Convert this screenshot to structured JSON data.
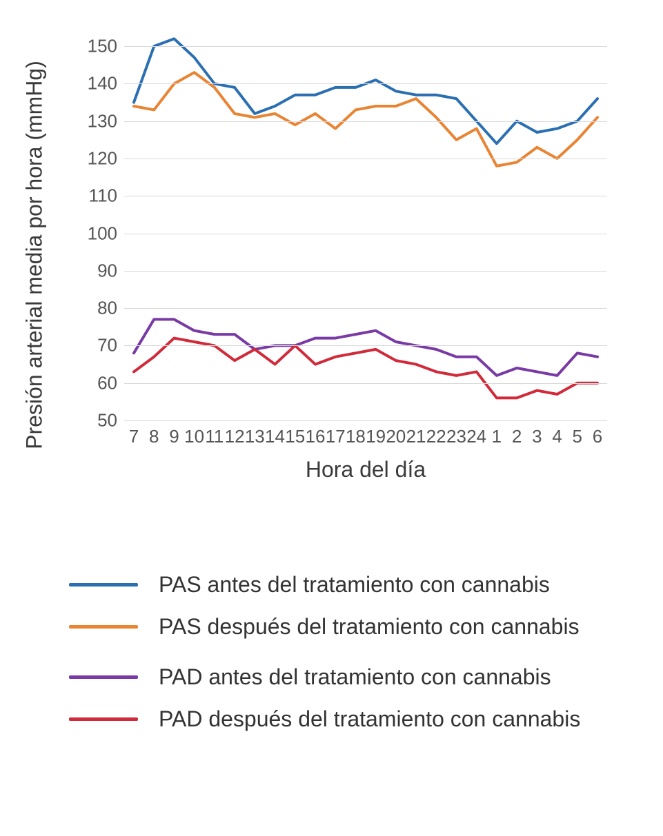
{
  "chart": {
    "type": "line",
    "background_color": "#ffffff",
    "grid_color": "#d9d9d9",
    "axis_text_color": "#555555",
    "label_text_color": "#3a3a3a",
    "ylabel": "Presión arterial media por hora (mmHg)",
    "xlabel": "Hora del día",
    "ylabel_fontsize": 32,
    "xlabel_fontsize": 32,
    "tick_fontsize": 26,
    "ylim": [
      50,
      155
    ],
    "yticks": [
      50,
      60,
      70,
      80,
      90,
      100,
      110,
      120,
      130,
      140,
      150
    ],
    "x_categories": [
      "7",
      "8",
      "9",
      "10",
      "11",
      "12",
      "13",
      "14",
      "15",
      "16",
      "17",
      "18",
      "19",
      "20",
      "21",
      "22",
      "23",
      "24",
      "1",
      "2",
      "3",
      "4",
      "5",
      "6"
    ],
    "line_width": 4,
    "series": [
      {
        "key": "pas_before",
        "color": "#2b6fb3",
        "values": [
          135,
          150,
          152,
          147,
          140,
          139,
          132,
          134,
          137,
          137,
          139,
          139,
          141,
          138,
          137,
          137,
          136,
          130,
          124,
          130,
          127,
          128,
          130,
          136
        ]
      },
      {
        "key": "pas_after",
        "color": "#e98433",
        "values": [
          134,
          133,
          140,
          143,
          139,
          132,
          131,
          132,
          129,
          132,
          128,
          133,
          134,
          134,
          136,
          131,
          125,
          128,
          118,
          119,
          123,
          120,
          125,
          131
        ]
      },
      {
        "key": "pad_before",
        "color": "#7a3aa5",
        "values": [
          68,
          77,
          77,
          74,
          73,
          73,
          69,
          70,
          70,
          72,
          72,
          73,
          74,
          71,
          70,
          69,
          67,
          67,
          62,
          64,
          63,
          62,
          68,
          67
        ]
      },
      {
        "key": "pad_after",
        "color": "#d12a3a",
        "values": [
          63,
          67,
          72,
          71,
          70,
          66,
          69,
          65,
          70,
          65,
          67,
          68,
          69,
          66,
          65,
          63,
          62,
          63,
          56,
          56,
          58,
          57,
          60,
          60
        ]
      }
    ]
  },
  "legend": {
    "fontsize": 32,
    "groups": [
      {
        "items": [
          {
            "series": "pas_before",
            "color": "#2b6fb3",
            "label": "PAS antes del tratamiento con cannabis"
          },
          {
            "series": "pas_after",
            "color": "#e98433",
            "label": "PAS después del tratamiento con cannabis"
          }
        ]
      },
      {
        "items": [
          {
            "series": "pad_before",
            "color": "#7a3aa5",
            "label": "PAD antes del tratamiento con cannabis"
          },
          {
            "series": "pad_after",
            "color": "#d12a3a",
            "label": "PAD después del tratamiento con cannabis"
          }
        ]
      }
    ]
  }
}
